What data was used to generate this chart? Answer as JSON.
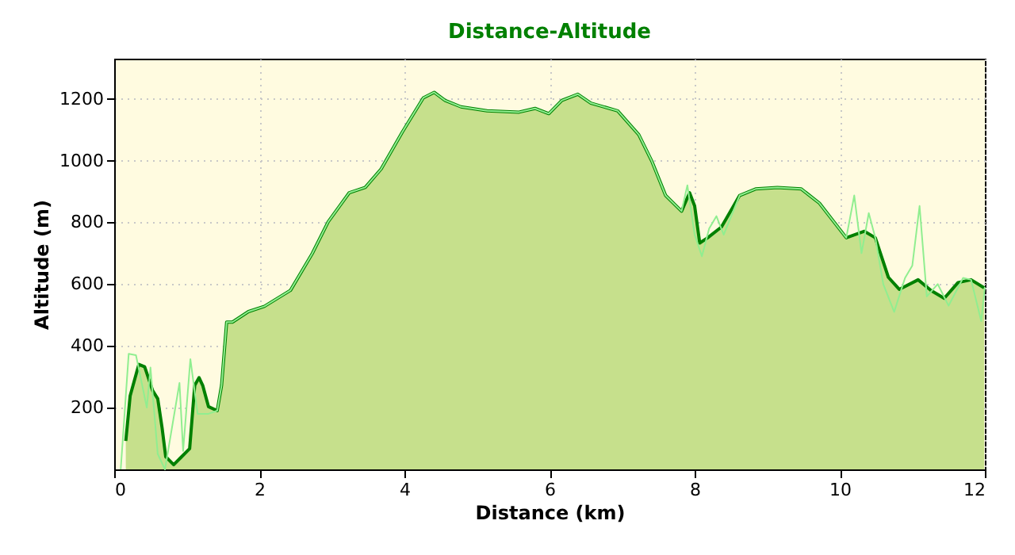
{
  "chart_data": {
    "type": "line",
    "title": "Distance-Altitude",
    "xlabel": "Distance (km)",
    "ylabel": "Altitude (m)",
    "xlim": [
      0,
      12
    ],
    "xticks": [
      0,
      2,
      4,
      6,
      8,
      10,
      12
    ],
    "ylim": [
      0,
      1330
    ],
    "yticks": [
      200,
      400,
      600,
      800,
      1000,
      1200
    ],
    "grid": true,
    "line_style": "solid",
    "marker": "none",
    "series": [
      {
        "color": "#90ee90",
        "x": [
          0.09,
          0.2,
          0.3,
          0.45,
          0.5,
          0.6,
          0.7,
          0.9,
          0.95,
          1.05,
          1.15,
          1.3,
          1.42,
          1.48,
          1.55,
          1.63,
          1.85,
          2.07,
          2.43,
          2.73,
          2.95,
          3.24,
          3.46,
          3.68,
          3.97,
          4.26,
          4.41,
          4.56,
          4.78,
          5.14,
          5.58,
          5.8,
          5.99,
          6.17,
          6.39,
          6.57,
          6.94,
          7.23,
          7.41,
          7.6,
          7.82,
          7.9,
          8.0,
          8.1,
          8.2,
          8.3,
          8.4,
          8.62,
          8.84,
          9.14,
          9.47,
          9.72,
          10.09,
          10.2,
          10.3,
          10.4,
          10.49,
          10.6,
          10.75,
          10.9,
          11.0,
          11.1,
          11.2,
          11.35,
          11.5,
          11.7,
          11.81,
          11.95,
          12.0
        ],
        "values": [
          0,
          374,
          370,
          200,
          330,
          50,
          0,
          280,
          60,
          357,
          180,
          180,
          190,
          272,
          477,
          477,
          511,
          528,
          580,
          699,
          802,
          896,
          913,
          973,
          1092,
          1203,
          1221,
          1195,
          1174,
          1161,
          1157,
          1169,
          1152,
          1195,
          1215,
          1186,
          1161,
          1084,
          998,
          887,
          836,
          920,
          760,
          690,
          780,
          820,
          760,
          887,
          908,
          913,
          908,
          862,
          750,
          887,
          700,
          830,
          750,
          600,
          510,
          620,
          660,
          853,
          560,
          600,
          530,
          620,
          614,
          480,
          590
        ]
      },
      {
        "type": "area",
        "color": "#008000",
        "x": [
          0.16,
          0.22,
          0.34,
          0.42,
          0.53,
          0.6,
          0.66,
          0.71,
          0.82,
          0.93,
          1.04,
          1.11,
          1.17,
          1.22,
          1.3,
          1.42,
          1.48,
          1.55,
          1.63,
          1.85,
          2.07,
          2.43,
          2.73,
          2.95,
          3.24,
          3.46,
          3.68,
          3.97,
          4.26,
          4.41,
          4.56,
          4.78,
          5.14,
          5.58,
          5.8,
          5.99,
          6.17,
          6.39,
          6.57,
          6.94,
          7.23,
          7.41,
          7.6,
          7.82,
          7.93,
          8.0,
          8.07,
          8.18,
          8.37,
          8.62,
          8.84,
          9.14,
          9.47,
          9.72,
          10.09,
          10.34,
          10.49,
          10.67,
          10.82,
          11.08,
          11.26,
          11.44,
          11.63,
          11.81,
          11.99
        ],
        "values": [
          92,
          238,
          340,
          332,
          255,
          229,
          135,
          41,
          15,
          41,
          67,
          272,
          297,
          272,
          203,
          190,
          272,
          477,
          477,
          511,
          528,
          580,
          699,
          802,
          896,
          913,
          973,
          1092,
          1203,
          1221,
          1195,
          1174,
          1161,
          1157,
          1169,
          1152,
          1195,
          1215,
          1186,
          1161,
          1084,
          998,
          887,
          836,
          896,
          853,
          733,
          750,
          785,
          887,
          908,
          913,
          908,
          862,
          750,
          771,
          750,
          622,
          583,
          614,
          579,
          554,
          605,
          614,
          588
        ]
      }
    ]
  }
}
